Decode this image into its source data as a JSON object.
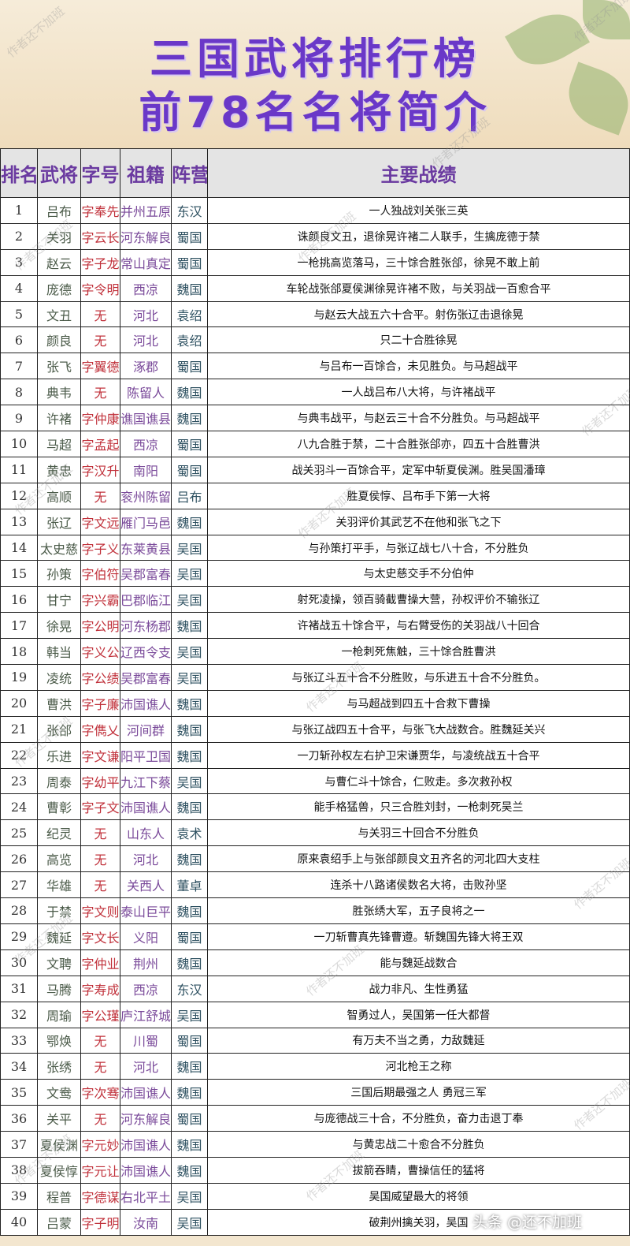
{
  "title": {
    "line1": "三国武将排行榜",
    "line2": "前78名名将简介"
  },
  "watermark": "作者还不加班",
  "badge": "头条 @还不加班",
  "headers": [
    "排名",
    "武将",
    "字号",
    "祖籍",
    "阵营",
    "主要战绩"
  ],
  "rows": [
    [
      "1",
      "吕布",
      "字奉先",
      "并州五原",
      "东汉",
      "一人独战刘关张三英"
    ],
    [
      "2",
      "关羽",
      "字云长",
      "河东解良",
      "蜀国",
      "诛颜良文丑，退徐晃许褚二人联手，生擒庞德于禁"
    ],
    [
      "3",
      "赵云",
      "字子龙",
      "常山真定",
      "蜀国",
      "一枪挑高览落马，三十馀合胜张郃，徐晃不敢上前"
    ],
    [
      "4",
      "庞德",
      "字令明",
      "西凉",
      "魏国",
      "车轮战张郃夏侯渊徐晃许褚不败，与关羽战一百愈合平"
    ],
    [
      "5",
      "文丑",
      "无",
      "河北",
      "袁绍",
      "与赵云大战五六十合平。射伤张辽击退徐晃"
    ],
    [
      "6",
      "颜良",
      "无",
      "河北",
      "袁绍",
      "只二十合胜徐晃"
    ],
    [
      "7",
      "张飞",
      "字翼德",
      "涿郡",
      "蜀国",
      "与吕布一百馀合，未见胜负。与马超战平"
    ],
    [
      "8",
      "典韦",
      "无",
      "陈留人",
      "魏国",
      "一人战吕布八大将，与许褚战平"
    ],
    [
      "9",
      "许褚",
      "字仲康",
      "谯国谯县",
      "魏国",
      "与典韦战平，与赵云三十合不分胜负。与马超战平"
    ],
    [
      "10",
      "马超",
      "字孟起",
      "西凉",
      "蜀国",
      "八九合胜于禁，二十合胜张郃亦，四五十合胜曹洪"
    ],
    [
      "11",
      "黄忠",
      "字汉升",
      "南阳",
      "蜀国",
      "战关羽斗一百馀合平，定军中斩夏侯渊。胜吴国潘璋"
    ],
    [
      "12",
      "高顺",
      "无",
      "衮州陈留",
      "吕布",
      "胜夏侯惇、吕布手下第一大将"
    ],
    [
      "13",
      "张辽",
      "字文远",
      "雁门马邑",
      "魏国",
      "关羽评价其武艺不在他和张飞之下"
    ],
    [
      "14",
      "太史慈",
      "字子义",
      "东莱黄县",
      "吴国",
      "与孙策打平手，与张辽战七八十合，不分胜负"
    ],
    [
      "15",
      "孙策",
      "字伯符",
      "吴郡富春",
      "吴国",
      "与太史慈交手不分伯仲"
    ],
    [
      "16",
      "甘宁",
      "字兴霸",
      "巴郡临江",
      "吴国",
      "射死凌操，领百骑截曹操大营，孙权评价不输张辽"
    ],
    [
      "17",
      "徐晃",
      "字公明",
      "河东杨郡",
      "魏国",
      "许褚战五十馀合平，与右臂受伤的关羽战八十回合"
    ],
    [
      "18",
      "韩当",
      "字义公",
      "辽西令支",
      "吴国",
      "一枪刺死焦触，三十馀合胜曹洪"
    ],
    [
      "19",
      "凌统",
      "字公绩",
      "吴郡富春",
      "吴国",
      "与张辽斗五十合不分胜败，与乐进五十合不分胜负。"
    ],
    [
      "20",
      "曹洪",
      "字子廉",
      "沛国谯人",
      "魏国",
      "与马超战到四五十合救下曹操"
    ],
    [
      "21",
      "张郃",
      "字儁乂",
      "河间群",
      "魏国",
      "与张辽战四五十合平，与张飞大战数合。胜魏延关兴"
    ],
    [
      "22",
      "乐进",
      "字文谦",
      "阳平卫国",
      "魏国",
      "一刀斩孙权左右护卫宋谦贾华，与凌统战五十合平"
    ],
    [
      "23",
      "周泰",
      "字幼平",
      "九江下蔡",
      "吴国",
      "与曹仁斗十馀合，仁败走。多次救孙权"
    ],
    [
      "24",
      "曹彰",
      "字子文",
      "沛国谯人",
      "魏国",
      "能手格猛兽，只三合胜刘封，一枪刺死吴兰"
    ],
    [
      "25",
      "纪灵",
      "无",
      "山东人",
      "袁术",
      "与关羽三十回合不分胜负"
    ],
    [
      "26",
      "高览",
      "无",
      "河北",
      "魏国",
      "原来袁绍手上与张郃颜良文丑齐名的河北四大支柱"
    ],
    [
      "27",
      "华雄",
      "无",
      "关西人",
      "董卓",
      "连杀十八路诸侯数名大将，击败孙坚"
    ],
    [
      "28",
      "于禁",
      "字文则",
      "泰山巨平",
      "魏国",
      "胜张绣大军，五子良将之一"
    ],
    [
      "29",
      "魏延",
      "字文长",
      "义阳",
      "蜀国",
      "一刀斩曹真先锋曹遵。斩魏国先锋大将王双"
    ],
    [
      "30",
      "文聘",
      "字仲业",
      "荆州",
      "魏国",
      "能与魏延战数合"
    ],
    [
      "31",
      "马腾",
      "字寿成",
      "西凉",
      "东汉",
      "战力非凡、生性勇猛"
    ],
    [
      "32",
      "周瑜",
      "字公瑾",
      "庐江舒城",
      "吴国",
      "智勇过人，吴国第一任大都督"
    ],
    [
      "33",
      "鄂焕",
      "无",
      "川蜀",
      "蜀国",
      "有万夫不当之勇，力敌魏延"
    ],
    [
      "34",
      "张绣",
      "无",
      "河北",
      "魏国",
      "河北枪王之称"
    ],
    [
      "35",
      "文鸯",
      "字次骞",
      "沛国谯人",
      "魏国",
      "三国后期最强之人 勇冠三军"
    ],
    [
      "36",
      "关平",
      "无",
      "河东解良",
      "蜀国",
      "与庞德战三十合，不分胜负，奋力击退丁奉"
    ],
    [
      "37",
      "夏侯渊",
      "字元妙",
      "沛国谯人",
      "魏国",
      "与黄忠战二十愈合不分胜负"
    ],
    [
      "38",
      "夏侯惇",
      "字元让",
      "沛国谯人",
      "魏国",
      "拔箭吞睛，曹操信任的猛将"
    ],
    [
      "39",
      "程普",
      "字德谋",
      "右北平土垠",
      "吴国",
      "吴国威望最大的将领"
    ],
    [
      "40",
      "吕蒙",
      "字子明",
      "汝南",
      "吴国",
      "破荆州擒关羽，吴国"
    ]
  ]
}
